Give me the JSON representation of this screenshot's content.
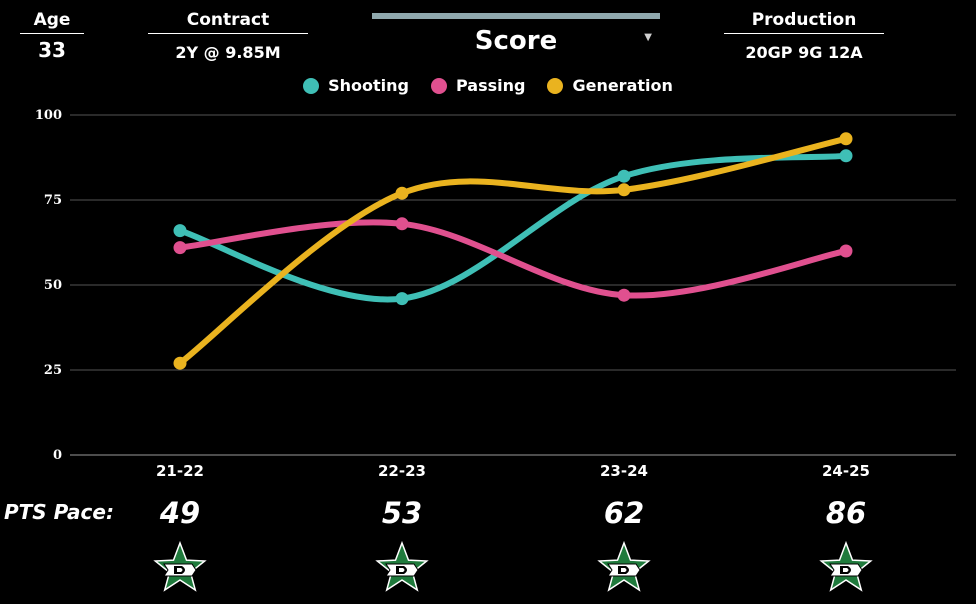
{
  "stats": {
    "age": {
      "label": "Age",
      "value": "33"
    },
    "contract": {
      "label": "Contract",
      "value": "2Y @ 9.85M"
    },
    "production": {
      "label": "Production",
      "value": "20GP 9G 12A"
    }
  },
  "metric_selector": {
    "label": "Score"
  },
  "pts_pace": {
    "label": "PTS Pace:",
    "values": [
      "49",
      "53",
      "62",
      "86"
    ]
  },
  "team_logo_icon": "dallas-stars-logo-icon",
  "colors": {
    "background": "#000000",
    "shooting": "#3fbfb6",
    "passing": "#e0508f",
    "generation": "#eab31f",
    "selector_bar": "#8fa8ad",
    "logo_green": "#1f7a3c"
  },
  "chart_data": {
    "type": "line",
    "title": "",
    "xlabel": "",
    "ylabel": "",
    "categories": [
      "21-22",
      "22-23",
      "23-24",
      "24-25"
    ],
    "ylim": [
      0,
      100
    ],
    "yticks": [
      0,
      25,
      50,
      75,
      100
    ],
    "grid": true,
    "legend": "top",
    "smooth": true,
    "series": [
      {
        "name": "Shooting",
        "color": "#3fbfb6",
        "values": [
          66,
          46,
          82,
          88
        ]
      },
      {
        "name": "Passing",
        "color": "#e0508f",
        "values": [
          61,
          68,
          47,
          60
        ]
      },
      {
        "name": "Generation",
        "color": "#eab31f",
        "values": [
          27,
          77,
          78,
          93
        ]
      }
    ]
  }
}
